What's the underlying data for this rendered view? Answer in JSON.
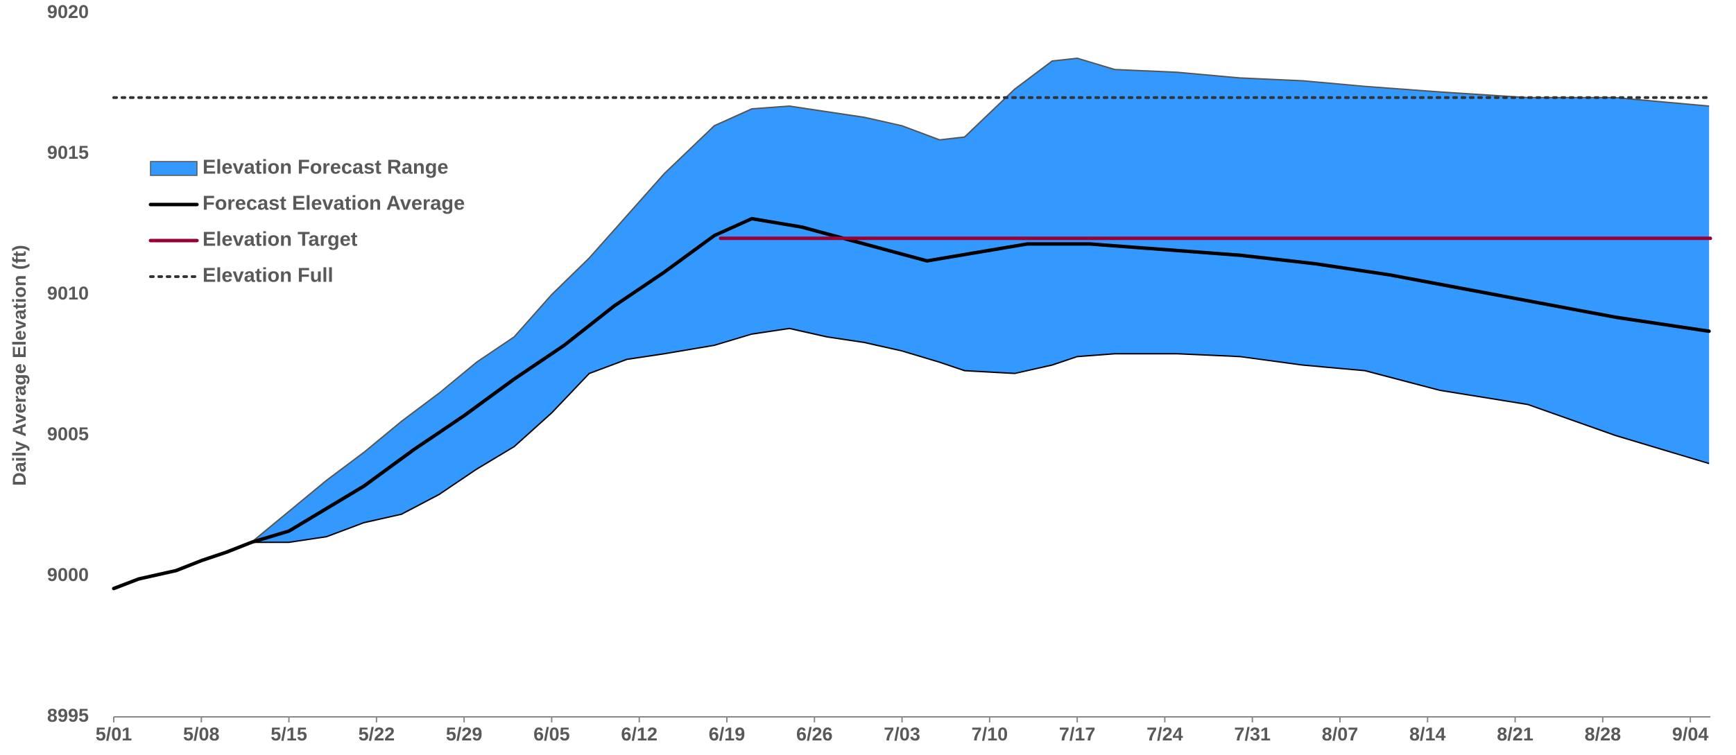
{
  "chart_data": {
    "type": "range_line",
    "ylabel": "Daily Average Elevation (ft)",
    "xlim": [
      0,
      127.6
    ],
    "ylim": [
      8995,
      9020
    ],
    "yticks": [
      8995,
      9000,
      9005,
      9010,
      9015,
      9020
    ],
    "xticks": [
      {
        "value": 0,
        "label": "5/01"
      },
      {
        "value": 7,
        "label": "5/08"
      },
      {
        "value": 14,
        "label": "5/15"
      },
      {
        "value": 21,
        "label": "5/22"
      },
      {
        "value": 28,
        "label": "5/29"
      },
      {
        "value": 35,
        "label": "6/05"
      },
      {
        "value": 42,
        "label": "6/12"
      },
      {
        "value": 49,
        "label": "6/19"
      },
      {
        "value": 56,
        "label": "6/26"
      },
      {
        "value": 63,
        "label": "7/03"
      },
      {
        "value": 70,
        "label": "7/10"
      },
      {
        "value": 77,
        "label": "7/17"
      },
      {
        "value": 84,
        "label": "7/24"
      },
      {
        "value": 91,
        "label": "7/31"
      },
      {
        "value": 98,
        "label": "8/07"
      },
      {
        "value": 105,
        "label": "8/14"
      },
      {
        "value": 112,
        "label": "8/21"
      },
      {
        "value": 119,
        "label": "8/28"
      },
      {
        "value": 126,
        "label": "9/04"
      }
    ],
    "legend": "left",
    "series": [
      {
        "name": "Elevation Forecast Range",
        "kind": "range",
        "color": "#3399ff",
        "x": [
          11,
          14,
          17,
          20,
          23,
          26,
          29,
          32,
          35,
          38,
          41,
          44,
          48,
          51,
          54,
          57,
          60,
          63,
          66,
          68,
          72,
          75,
          77,
          80,
          85,
          90,
          95,
          100,
          106,
          113,
          120,
          127.5
        ],
        "upper": [
          9001.2,
          9002.3,
          9003.4,
          9004.4,
          9005.5,
          9006.5,
          9007.6,
          9008.5,
          9010.0,
          9011.3,
          9012.8,
          9014.3,
          9016.0,
          9016.6,
          9016.7,
          9016.5,
          9016.3,
          9016.0,
          9015.5,
          9015.6,
          9017.3,
          9018.3,
          9018.4,
          9018.0,
          9017.9,
          9017.7,
          9017.6,
          9017.4,
          9017.2,
          9017.0,
          9017.0,
          9016.7
        ],
        "lower": [
          9001.2,
          9001.2,
          9001.4,
          9001.9,
          9002.2,
          9002.9,
          9003.8,
          9004.6,
          9005.8,
          9007.2,
          9007.7,
          9007.9,
          9008.2,
          9008.6,
          9008.8,
          9008.5,
          9008.3,
          9008.0,
          9007.6,
          9007.3,
          9007.2,
          9007.5,
          9007.8,
          9007.9,
          9007.9,
          9007.8,
          9007.5,
          9007.3,
          9006.6,
          9006.1,
          9005.0,
          9004.0
        ]
      },
      {
        "name": "Forecast Elevation Average",
        "kind": "line",
        "color": "#000000",
        "x": [
          0,
          2,
          5,
          7,
          9,
          11,
          14,
          17,
          20,
          24,
          28,
          32,
          36,
          40,
          44,
          48,
          51,
          55,
          60,
          65,
          69,
          73,
          78,
          84,
          90,
          96,
          102,
          108,
          114,
          120,
          127.5
        ],
        "values": [
          8999.56,
          8999.9,
          9000.2,
          9000.55,
          9000.85,
          9001.2,
          9001.6,
          9002.4,
          9003.2,
          9004.5,
          9005.7,
          9007.0,
          9008.2,
          9009.6,
          9010.8,
          9012.1,
          9012.7,
          9012.4,
          9011.8,
          9011.2,
          9011.5,
          9011.8,
          9011.8,
          9011.6,
          9011.4,
          9011.1,
          9010.7,
          9010.2,
          9009.7,
          9009.2,
          9008.7
        ]
      },
      {
        "name": "Elevation Target",
        "kind": "line",
        "color": "#990033",
        "x": [
          48.5,
          127.6
        ],
        "values": [
          9012,
          9012
        ]
      },
      {
        "name": "Elevation Full",
        "kind": "line",
        "color": "#333333",
        "dash": "dotted",
        "x": [
          0,
          127.6
        ],
        "values": [
          9017,
          9017
        ]
      }
    ]
  }
}
